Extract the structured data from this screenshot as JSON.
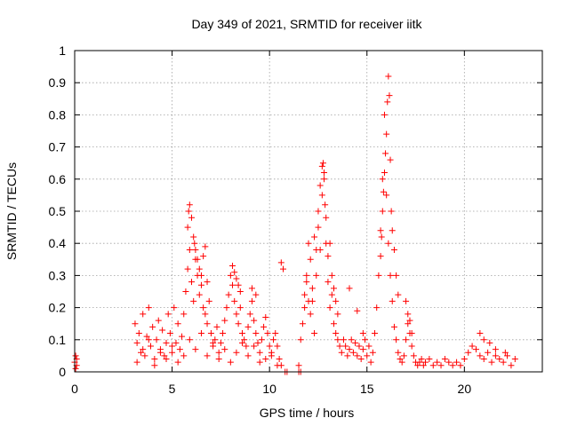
{
  "chart_data": {
    "type": "scatter",
    "title": "Day 349 of 2021, SRMTID for receiver iitk",
    "xlabel": "GPS time / hours",
    "ylabel": "SRMTID / TECUs",
    "xlim": [
      0,
      24
    ],
    "ylim": [
      0,
      1
    ],
    "xticks": [
      "0",
      "5",
      "10",
      "15",
      "20"
    ],
    "yticks": [
      "0",
      "0.1",
      "0.2",
      "0.3",
      "0.4",
      "0.5",
      "0.6",
      "0.7",
      "0.8",
      "0.9",
      "1"
    ],
    "grid": true,
    "marker": "+",
    "series": [
      {
        "color": "#ff0000",
        "x": [
          0.0,
          0.05,
          0.1,
          0.05,
          0.1,
          3.1,
          3.2,
          3.3,
          3.4,
          3.5,
          3.6,
          3.7,
          3.8,
          3.9,
          4.0,
          4.1,
          4.2,
          4.3,
          4.4,
          4.5,
          4.6,
          4.7,
          4.8,
          4.9,
          5.0,
          5.1,
          5.2,
          5.3,
          5.4,
          5.5,
          5.6,
          5.7,
          5.8,
          5.9,
          6.0,
          6.1,
          6.2,
          6.3,
          6.4,
          6.5,
          6.6,
          6.7,
          6.8,
          6.9,
          7.0,
          7.1,
          7.2,
          7.3,
          7.4,
          7.5,
          7.6,
          7.7,
          7.8,
          7.9,
          8.0,
          8.1,
          8.2,
          8.3,
          8.4,
          8.5,
          8.6,
          8.7,
          8.8,
          8.9,
          9.0,
          9.1,
          9.2,
          9.3,
          9.4,
          9.5,
          9.6,
          9.7,
          9.8,
          9.9,
          10.0,
          10.1,
          10.2,
          10.3,
          10.4,
          10.5,
          10.6,
          11.5,
          11.6,
          11.7,
          11.8,
          11.9,
          12.0,
          12.1,
          12.2,
          12.3,
          12.4,
          12.5,
          12.6,
          12.7,
          12.8,
          12.9,
          13.0,
          13.1,
          13.2,
          13.3,
          13.4,
          13.5,
          13.6,
          13.7,
          13.8,
          13.9,
          14.0,
          14.1,
          14.2,
          14.3,
          14.4,
          14.5,
          14.6,
          14.7,
          14.8,
          14.9,
          15.0,
          15.1,
          15.2,
          15.3,
          15.4,
          15.5,
          15.6,
          15.7,
          15.8,
          15.9,
          16.0,
          16.1,
          16.2,
          16.3,
          16.4,
          16.5,
          16.6,
          16.7,
          16.8,
          16.9,
          17.0,
          17.1,
          17.2,
          17.3,
          17.4,
          17.5,
          17.6,
          17.7,
          17.8,
          17.9,
          18.0,
          18.2,
          18.4,
          18.6,
          18.8,
          19.0,
          19.2,
          19.4,
          19.6,
          19.8,
          20.0,
          20.2,
          20.4,
          20.6,
          20.8,
          21.0,
          21.2,
          21.4,
          21.6,
          21.8,
          22.0,
          22.2,
          22.4,
          22.6,
          3.2,
          3.5,
          3.8,
          4.1,
          4.4,
          4.7,
          5.0,
          5.3,
          5.6,
          5.9,
          6.2,
          6.5,
          6.8,
          7.1,
          7.4,
          7.7,
          8.0,
          8.3,
          8.6,
          8.9,
          9.2,
          9.5,
          9.8,
          10.1,
          10.4,
          5.8,
          5.85,
          5.9,
          6.0,
          6.1,
          6.15,
          6.2,
          6.3,
          6.4,
          6.5,
          6.6,
          6.7,
          6.8,
          8.1,
          8.2,
          8.3,
          8.4,
          8.5,
          9.1,
          9.3,
          10.6,
          10.7,
          11.8,
          11.9,
          12.0,
          12.1,
          12.2,
          12.3,
          12.4,
          12.5,
          12.6,
          12.7,
          12.75,
          12.8,
          12.85,
          12.9,
          13.0,
          13.1,
          13.2,
          13.3,
          13.4,
          13.5,
          14.1,
          14.5,
          14.8,
          15.7,
          15.75,
          15.8,
          15.85,
          15.9,
          15.95,
          16.0,
          16.05,
          16.1,
          16.15,
          16.2,
          16.25,
          16.3,
          16.4,
          16.5,
          16.6,
          17.0,
          17.1,
          17.2,
          17.3,
          11.5,
          11.6,
          10.8,
          10.9,
          20.8,
          21.0,
          21.3,
          21.6,
          22.1
        ],
        "y": [
          0.03,
          0.05,
          0.02,
          0.01,
          0.04,
          0.15,
          0.09,
          0.12,
          0.06,
          0.18,
          0.05,
          0.11,
          0.2,
          0.08,
          0.14,
          0.04,
          0.1,
          0.16,
          0.07,
          0.13,
          0.05,
          0.09,
          0.18,
          0.12,
          0.06,
          0.2,
          0.09,
          0.15,
          0.07,
          0.11,
          0.18,
          0.25,
          0.32,
          0.38,
          0.28,
          0.22,
          0.35,
          0.3,
          0.24,
          0.27,
          0.2,
          0.18,
          0.15,
          0.22,
          0.12,
          0.08,
          0.1,
          0.14,
          0.06,
          0.09,
          0.12,
          0.16,
          0.2,
          0.24,
          0.3,
          0.27,
          0.22,
          0.18,
          0.15,
          0.2,
          0.12,
          0.1,
          0.08,
          0.14,
          0.18,
          0.22,
          0.16,
          0.12,
          0.09,
          0.06,
          0.1,
          0.14,
          0.17,
          0.12,
          0.08,
          0.05,
          0.1,
          0.12,
          0.08,
          0.04,
          0.02,
          0.02,
          0.1,
          0.15,
          0.24,
          0.3,
          0.22,
          0.18,
          0.26,
          0.12,
          0.3,
          0.45,
          0.38,
          0.55,
          0.62,
          0.4,
          0.28,
          0.2,
          0.24,
          0.15,
          0.12,
          0.1,
          0.08,
          0.06,
          0.1,
          0.08,
          0.05,
          0.07,
          0.1,
          0.06,
          0.09,
          0.05,
          0.08,
          0.04,
          0.07,
          0.1,
          0.05,
          0.08,
          0.03,
          0.06,
          0.12,
          0.2,
          0.3,
          0.44,
          0.6,
          0.8,
          0.55,
          0.4,
          0.3,
          0.22,
          0.14,
          0.1,
          0.06,
          0.04,
          0.03,
          0.05,
          0.1,
          0.15,
          0.12,
          0.08,
          0.05,
          0.03,
          0.02,
          0.03,
          0.04,
          0.02,
          0.03,
          0.04,
          0.02,
          0.03,
          0.02,
          0.04,
          0.03,
          0.02,
          0.03,
          0.02,
          0.04,
          0.06,
          0.08,
          0.07,
          0.05,
          0.04,
          0.06,
          0.03,
          0.05,
          0.04,
          0.03,
          0.05,
          0.02,
          0.04,
          0.03,
          0.07,
          0.1,
          0.02,
          0.06,
          0.04,
          0.08,
          0.03,
          0.05,
          0.1,
          0.07,
          0.12,
          0.05,
          0.09,
          0.04,
          0.07,
          0.03,
          0.06,
          0.09,
          0.05,
          0.08,
          0.03,
          0.04,
          0.06,
          0.02,
          0.45,
          0.5,
          0.52,
          0.48,
          0.42,
          0.4,
          0.38,
          0.35,
          0.32,
          0.3,
          0.36,
          0.39,
          0.28,
          0.33,
          0.31,
          0.29,
          0.27,
          0.25,
          0.26,
          0.24,
          0.34,
          0.32,
          0.2,
          0.28,
          0.4,
          0.35,
          0.22,
          0.42,
          0.38,
          0.5,
          0.58,
          0.64,
          0.65,
          0.6,
          0.52,
          0.48,
          0.36,
          0.4,
          0.3,
          0.26,
          0.22,
          0.18,
          0.26,
          0.19,
          0.12,
          0.36,
          0.42,
          0.5,
          0.56,
          0.62,
          0.68,
          0.74,
          0.84,
          0.92,
          0.86,
          0.66,
          0.5,
          0.44,
          0.38,
          0.3,
          0.24,
          0.22,
          0.18,
          0.16,
          0.12,
          0.0,
          0.0,
          0.0,
          0.0,
          0.12,
          0.1,
          0.09,
          0.07,
          0.06
        ]
      }
    ]
  }
}
